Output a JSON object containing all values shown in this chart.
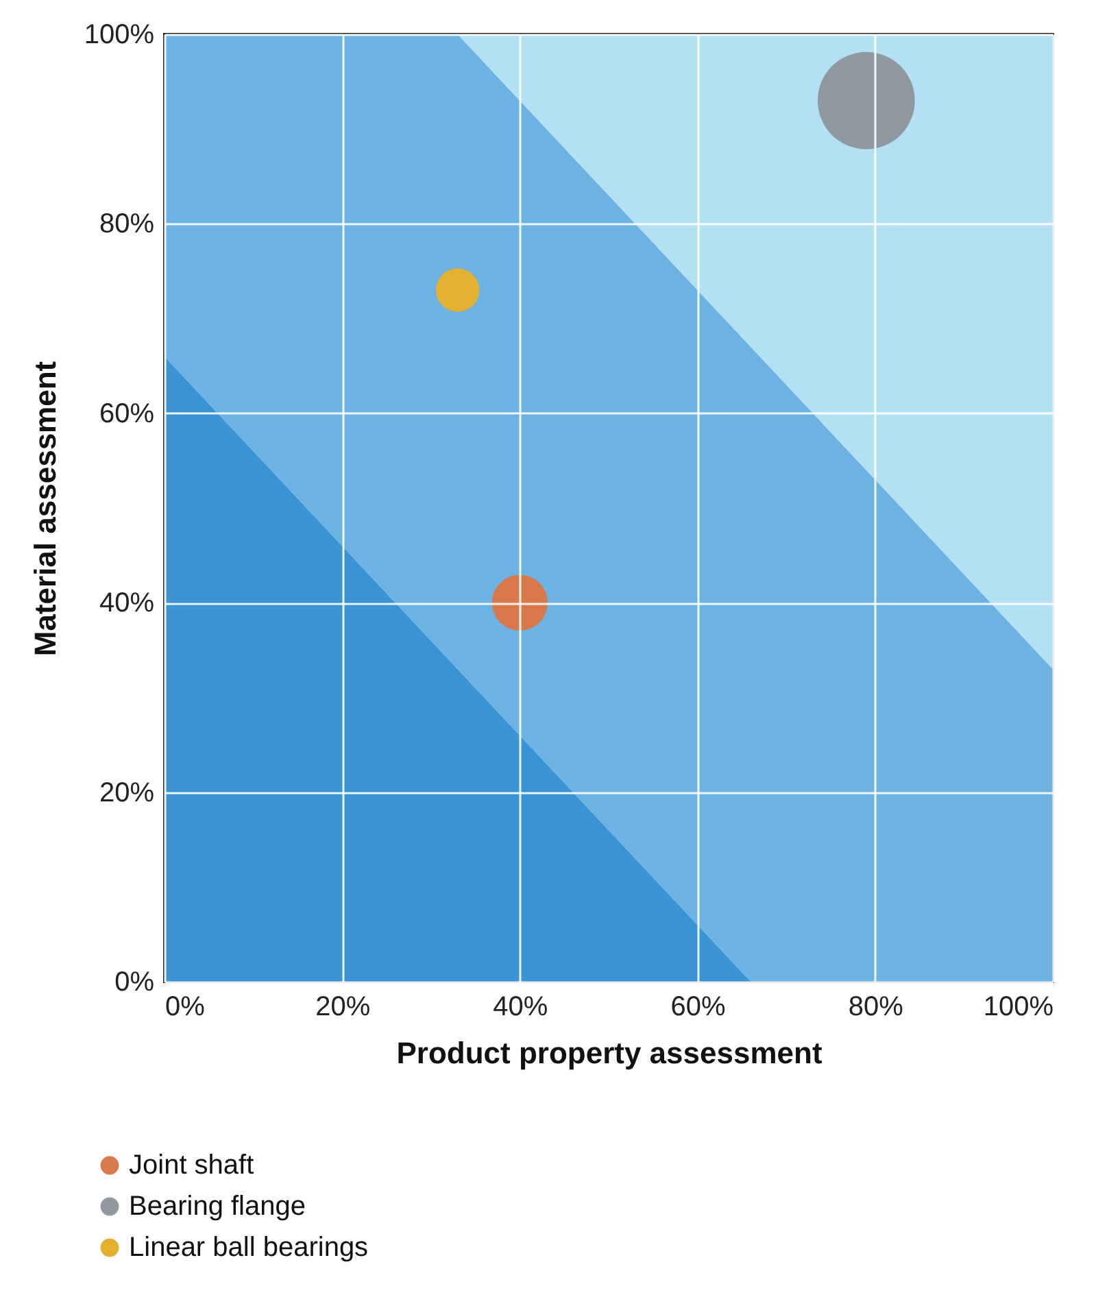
{
  "chart_data": {
    "type": "bubble",
    "xlabel": "Product property assessment",
    "ylabel": "Material assessment",
    "xlim": [
      0,
      100
    ],
    "ylim": [
      0,
      100
    ],
    "xticks": [
      {
        "value": 0,
        "label": "0%"
      },
      {
        "value": 20,
        "label": "20%"
      },
      {
        "value": 40,
        "label": "40%"
      },
      {
        "value": 60,
        "label": "60%"
      },
      {
        "value": 80,
        "label": "80%"
      },
      {
        "value": 100,
        "label": "100%"
      }
    ],
    "yticks": [
      {
        "value": 0,
        "label": "0%"
      },
      {
        "value": 20,
        "label": "20%"
      },
      {
        "value": 40,
        "label": "40%"
      },
      {
        "value": 60,
        "label": "60%"
      },
      {
        "value": 80,
        "label": "80%"
      },
      {
        "value": 100,
        "label": "100%"
      }
    ],
    "grid": true,
    "legend": "bottom",
    "stacked": true,
    "x": [
      0,
      33,
      66,
      100
    ],
    "series": [
      {
        "type": "area",
        "color": "#3b95d4",
        "values": [
          66,
          33,
          0,
          0
        ]
      },
      {
        "type": "area",
        "color": "#6cb3e3",
        "values": [
          34,
          67,
          67,
          33
        ]
      },
      {
        "type": "area",
        "color": "#b3e0f3",
        "values": [
          0,
          0,
          33,
          67
        ]
      },
      {
        "type": "bubble",
        "name": "Joint shaft",
        "color": "#d9784a",
        "x": [
          40
        ],
        "values": [
          40
        ],
        "sizes": [
          0.33
        ]
      },
      {
        "type": "bubble",
        "name": "Bearing flange",
        "color": "#9099a0",
        "x": [
          79
        ],
        "values": [
          93
        ],
        "sizes": [
          1
        ]
      },
      {
        "type": "bubble",
        "name": "Linear ball bearings",
        "color": "#e4b032",
        "x": [
          33
        ],
        "values": [
          73
        ],
        "sizes": [
          0.2
        ]
      }
    ]
  }
}
